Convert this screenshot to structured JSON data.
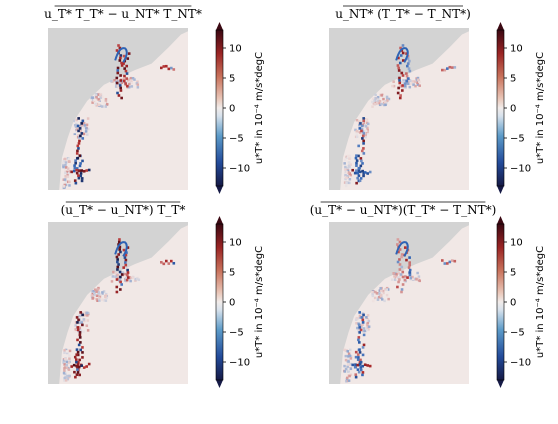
{
  "chart_data": [
    {
      "type": "heatmap",
      "title": "u_T* T_T* − u_NT* T_NT*",
      "colorbar": {
        "label": "u*T* in 10⁻⁴ m/s*degC",
        "ticks": [
          10,
          5,
          0,
          -5,
          -10
        ],
        "range": [
          -13,
          13
        ],
        "extend": "both",
        "cmap": "balance"
      }
    },
    {
      "type": "heatmap",
      "title": "u_NT* (T_T* − T_NT*)",
      "colorbar": {
        "label": "u*T* in 10⁻⁴ m/s*degC",
        "ticks": [
          10,
          5,
          0,
          -5,
          -10
        ],
        "range": [
          -13,
          13
        ],
        "extend": "both",
        "cmap": "balance"
      }
    },
    {
      "type": "heatmap",
      "title": "(u_T* − u_NT*) T_T*",
      "colorbar": {
        "label": "u*T* in 10⁻⁴ m/s*degC",
        "ticks": [
          10,
          5,
          0,
          -5,
          -10
        ],
        "range": [
          -13,
          13
        ],
        "extend": "both",
        "cmap": "balance"
      }
    },
    {
      "type": "heatmap",
      "title": "(u_T* − u_NT*)(T_T* − T_NT*)",
      "colorbar": {
        "label": "u*T* in 10⁻⁴ m/s*degC",
        "ticks": [
          10,
          5,
          0,
          -5,
          -10
        ],
        "range": [
          -13,
          13
        ],
        "extend": "both",
        "cmap": "balance"
      }
    }
  ],
  "colors": {
    "land": "#d3d3d3",
    "ocean_near_zero": "#f1e8e6",
    "positive_strong": "#4d0a16",
    "positive_mid": "#b22c2c",
    "negative_strong": "#161a46",
    "negative_mid": "#2e63b5"
  }
}
